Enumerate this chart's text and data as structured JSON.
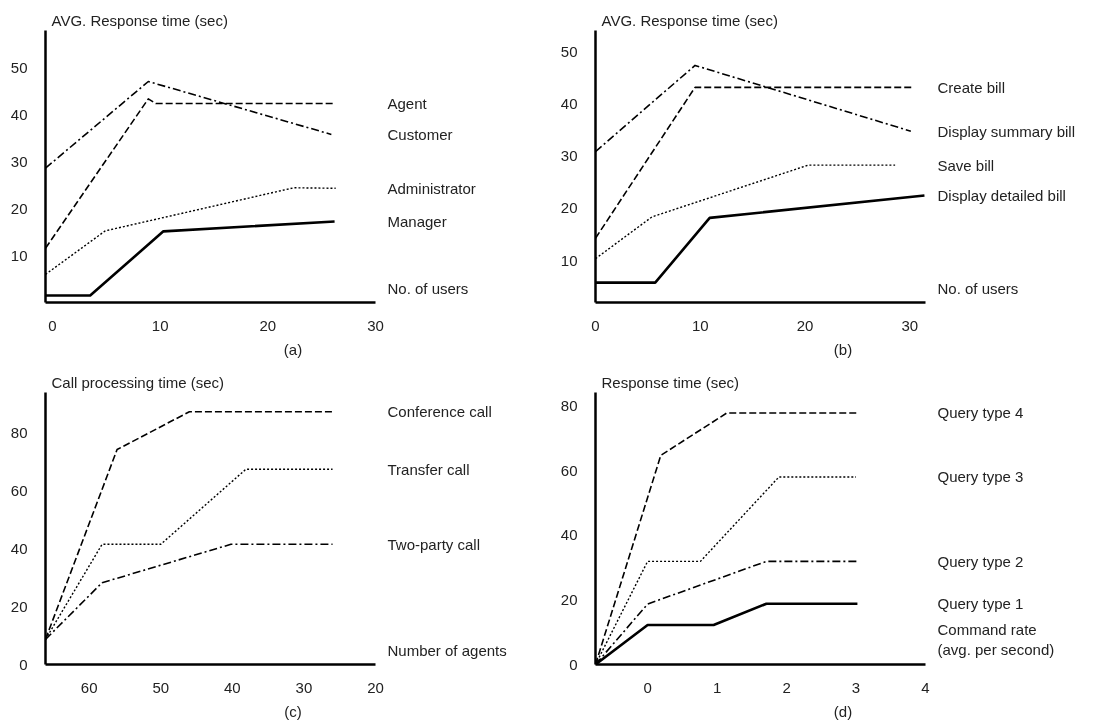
{
  "chart_data": [
    {
      "type": "line",
      "title": "(a)",
      "ylabel": "AVG. Response time (sec)",
      "xlabel": "No. of users",
      "xlim": [
        -0.65,
        30
      ],
      "ylim": [
        0,
        58
      ],
      "xticks": [
        0,
        10,
        20,
        30
      ],
      "yticks": [
        10,
        20,
        30,
        40,
        50
      ],
      "grid": false,
      "legend": false,
      "series": [
        {
          "name": "Agent",
          "color": "#000000",
          "line_style": "dashed",
          "x": [
            -0.65,
            8.9,
            9.6,
            26.2
          ],
          "values": [
            11.6,
            43.5,
            42.5,
            42.5
          ]
        },
        {
          "name": "Customer",
          "color": "#000000",
          "line_style": "dashdot",
          "x": [
            -0.65,
            8.9,
            25.9
          ],
          "values": [
            28.7,
            47.2,
            35.9
          ]
        },
        {
          "name": "Administrator",
          "color": "#000000",
          "line_style": "dotted",
          "x": [
            -0.65,
            4.9,
            22.4,
            26.3
          ],
          "values": [
            6.0,
            15.3,
            24.5,
            24.4
          ]
        },
        {
          "name": "Manager",
          "color": "#000000",
          "line_style": "solid",
          "x": [
            -0.65,
            3.5,
            10.3,
            26.2
          ],
          "values": [
            1.5,
            1.5,
            15.2,
            17.3
          ]
        }
      ]
    },
    {
      "type": "line",
      "title": "(b)",
      "ylabel": "AVG. Response time (sec)",
      "xlabel": "No. of users",
      "xlim": [
        0,
        31.5
      ],
      "ylim": [
        2,
        54
      ],
      "xticks": [
        0,
        10,
        20,
        30
      ],
      "yticks": [
        10,
        20,
        30,
        40,
        50
      ],
      "grid": false,
      "legend": false,
      "series": [
        {
          "name": "Create bill",
          "color": "#000000",
          "line_style": "dashed",
          "x": [
            0,
            9.5,
            30.2
          ],
          "values": [
            14.3,
            43.2,
            43.2
          ]
        },
        {
          "name": "Display summary bill",
          "color": "#000000",
          "line_style": "dashdot",
          "x": [
            0,
            9.5,
            30.1
          ],
          "values": [
            30.9,
            47.4,
            34.8
          ]
        },
        {
          "name": "Save bill",
          "color": "#000000",
          "line_style": "dotted",
          "x": [
            0,
            5.4,
            20.3,
            28.6
          ],
          "values": [
            10.4,
            18.4,
            28.3,
            28.3
          ]
        },
        {
          "name": "Display detailed bill",
          "color": "#000000",
          "line_style": "solid",
          "x": [
            0,
            5.7,
            10.9,
            31.4
          ],
          "values": [
            5.8,
            5.8,
            18.2,
            22.5
          ]
        }
      ]
    },
    {
      "type": "line",
      "title": "(c)",
      "ylabel": "Call processing time (sec)",
      "xlabel": "Number of agents",
      "xlim": [
        66.1,
        20
      ],
      "ylim": [
        0,
        94
      ],
      "xticks": [
        60,
        50,
        40,
        30,
        20
      ],
      "yticks": [
        0,
        20,
        40,
        60,
        80
      ],
      "grid": false,
      "legend": false,
      "series": [
        {
          "name": "Conference call",
          "color": "#000000",
          "line_style": "dashed",
          "x": [
            66.1,
            56.1,
            46.0,
            26.0
          ],
          "values": [
            8.7,
            74.4,
            87.5,
            87.5
          ]
        },
        {
          "name": "Transfer call",
          "color": "#000000",
          "line_style": "dotted",
          "x": [
            66.1,
            58.2,
            50.0,
            38.1,
            26.0
          ],
          "values": [
            8.7,
            41.6,
            41.6,
            67.6,
            67.6
          ]
        },
        {
          "name": "Two-party call",
          "color": "#000000",
          "line_style": "dashdot",
          "x": [
            66.1,
            58.2,
            40.2,
            26.0
          ],
          "values": [
            8.7,
            28.3,
            41.6,
            41.6
          ]
        }
      ]
    },
    {
      "type": "line",
      "title": "(d)",
      "ylabel": "Response time (sec)",
      "xlabel": "Command rate\n(avg. per second)",
      "xlim": [
        -0.75,
        4
      ],
      "ylim": [
        0,
        84
      ],
      "xticks": [
        0,
        1,
        2,
        3,
        4
      ],
      "yticks": [
        0,
        20,
        40,
        60,
        80
      ],
      "grid": false,
      "legend": false,
      "series": [
        {
          "name": "Query type 4",
          "color": "#000000",
          "line_style": "dashed",
          "x": [
            -0.75,
            0.19,
            1.14,
            3.03
          ],
          "values": [
            0,
            64.7,
            77.8,
            77.8
          ]
        },
        {
          "name": "Query type 3",
          "color": "#000000",
          "line_style": "dotted",
          "x": [
            -0.75,
            0,
            0.76,
            1.89,
            3.0
          ],
          "values": [
            0,
            31.9,
            31.9,
            58.0,
            58.0
          ]
        },
        {
          "name": "Query type 2",
          "color": "#000000",
          "line_style": "dashdot",
          "x": [
            -0.75,
            0,
            1.71,
            3.03
          ],
          "values": [
            0,
            18.7,
            31.9,
            31.9
          ]
        },
        {
          "name": "Query type 1",
          "color": "#000000",
          "line_style": "solid",
          "x": [
            -0.75,
            0,
            0.95,
            1.71,
            3.02
          ],
          "values": [
            0,
            12.2,
            12.2,
            18.8,
            18.8
          ]
        }
      ]
    }
  ]
}
